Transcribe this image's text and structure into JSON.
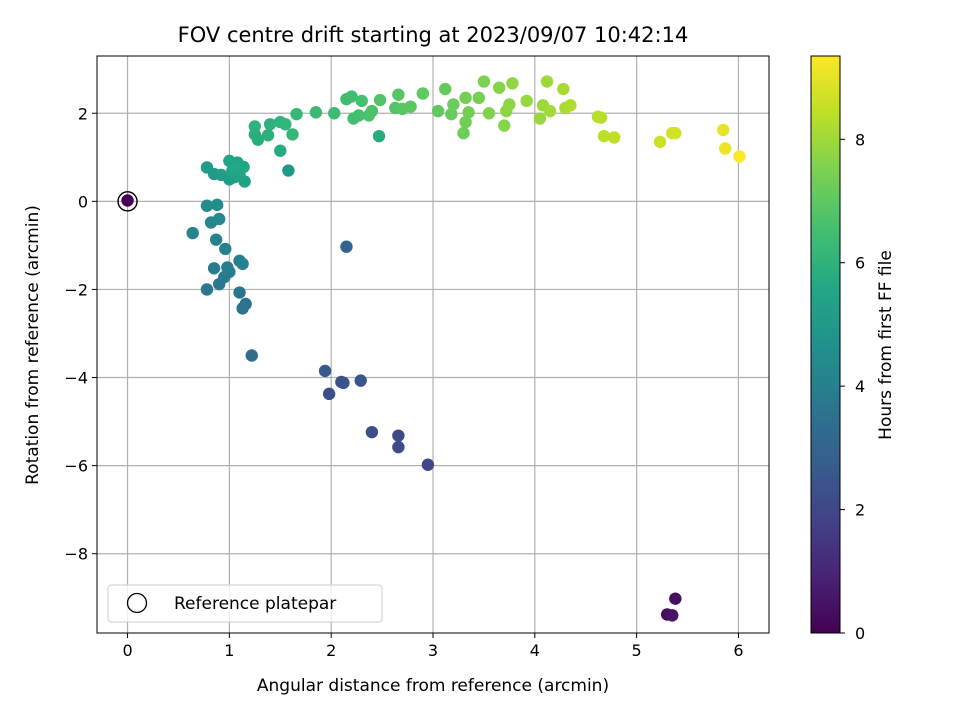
{
  "chart_data": {
    "type": "scatter",
    "title": "FOV centre drift starting at 2023/09/07 10:42:14",
    "xlabel": "Angular distance from reference (arcmin)",
    "ylabel": "Rotation from reference (arcmin)",
    "xlim": [
      -0.3,
      6.3
    ],
    "ylim": [
      -9.8,
      3.3
    ],
    "xticks": [
      0,
      1,
      2,
      3,
      4,
      5,
      6
    ],
    "yticks": [
      -8,
      -6,
      -4,
      -2,
      0,
      2
    ],
    "grid": true,
    "colormap": "viridis",
    "colorbar": {
      "label": "Hours from first FF file",
      "range": [
        0,
        9.35
      ],
      "ticks": [
        0,
        2,
        4,
        6,
        8
      ]
    },
    "legend": {
      "location": "lower-left",
      "entries": [
        "Reference platepar"
      ]
    },
    "reference_point": {
      "x": 0,
      "y": 0
    },
    "points": [
      {
        "x": 0.0,
        "y": 0.02,
        "c": 0.0
      },
      {
        "x": 5.3,
        "y": -9.38,
        "c": 0.3
      },
      {
        "x": 5.38,
        "y": -9.02,
        "c": 0.4
      },
      {
        "x": 5.35,
        "y": -9.4,
        "c": 0.5
      },
      {
        "x": 2.95,
        "y": -5.98,
        "c": 2.0
      },
      {
        "x": 2.66,
        "y": -5.58,
        "c": 2.1
      },
      {
        "x": 2.66,
        "y": -5.32,
        "c": 2.15
      },
      {
        "x": 2.4,
        "y": -5.24,
        "c": 2.2
      },
      {
        "x": 1.98,
        "y": -4.37,
        "c": 2.3
      },
      {
        "x": 2.1,
        "y": -4.1,
        "c": 2.4
      },
      {
        "x": 2.12,
        "y": -4.12,
        "c": 2.45
      },
      {
        "x": 2.29,
        "y": -4.07,
        "c": 2.5
      },
      {
        "x": 1.94,
        "y": -3.85,
        "c": 2.6
      },
      {
        "x": 2.15,
        "y": -1.03,
        "c": 3.0
      },
      {
        "x": 1.22,
        "y": -3.5,
        "c": 3.3
      },
      {
        "x": 1.13,
        "y": -2.43,
        "c": 3.5
      },
      {
        "x": 1.16,
        "y": -2.33,
        "c": 3.55
      },
      {
        "x": 1.1,
        "y": -2.07,
        "c": 3.6
      },
      {
        "x": 0.78,
        "y": -2.0,
        "c": 3.7
      },
      {
        "x": 0.9,
        "y": -1.88,
        "c": 3.75
      },
      {
        "x": 0.95,
        "y": -1.72,
        "c": 3.8
      },
      {
        "x": 1.0,
        "y": -1.6,
        "c": 3.85
      },
      {
        "x": 0.85,
        "y": -1.52,
        "c": 3.9
      },
      {
        "x": 0.98,
        "y": -1.5,
        "c": 3.95
      },
      {
        "x": 1.1,
        "y": -1.35,
        "c": 4.0
      },
      {
        "x": 1.13,
        "y": -1.42,
        "c": 4.05
      },
      {
        "x": 0.96,
        "y": -1.08,
        "c": 4.1
      },
      {
        "x": 0.87,
        "y": -0.87,
        "c": 4.15
      },
      {
        "x": 0.64,
        "y": -0.72,
        "c": 4.2
      },
      {
        "x": 0.82,
        "y": -0.48,
        "c": 4.3
      },
      {
        "x": 0.9,
        "y": -0.4,
        "c": 4.35
      },
      {
        "x": 0.78,
        "y": -0.1,
        "c": 4.4
      },
      {
        "x": 0.88,
        "y": -0.08,
        "c": 4.45
      },
      {
        "x": 1.58,
        "y": 0.7,
        "c": 5.0
      },
      {
        "x": 0.78,
        "y": 0.77,
        "c": 5.05
      },
      {
        "x": 0.85,
        "y": 0.62,
        "c": 5.1
      },
      {
        "x": 0.92,
        "y": 0.6,
        "c": 5.15
      },
      {
        "x": 1.0,
        "y": 0.5,
        "c": 5.2
      },
      {
        "x": 1.05,
        "y": 0.55,
        "c": 5.25
      },
      {
        "x": 1.15,
        "y": 0.45,
        "c": 5.3
      },
      {
        "x": 1.1,
        "y": 0.6,
        "c": 5.35
      },
      {
        "x": 1.03,
        "y": 0.7,
        "c": 5.4
      },
      {
        "x": 1.0,
        "y": 0.92,
        "c": 5.45
      },
      {
        "x": 1.08,
        "y": 0.88,
        "c": 5.5
      },
      {
        "x": 1.14,
        "y": 0.78,
        "c": 5.55
      },
      {
        "x": 1.05,
        "y": 0.75,
        "c": 5.6
      },
      {
        "x": 1.5,
        "y": 1.15,
        "c": 5.7
      },
      {
        "x": 2.47,
        "y": 1.48,
        "c": 5.75
      },
      {
        "x": 1.28,
        "y": 1.4,
        "c": 5.8
      },
      {
        "x": 1.25,
        "y": 1.52,
        "c": 5.85
      },
      {
        "x": 1.38,
        "y": 1.5,
        "c": 5.9
      },
      {
        "x": 1.4,
        "y": 1.75,
        "c": 5.95
      },
      {
        "x": 1.25,
        "y": 1.7,
        "c": 6.0
      },
      {
        "x": 1.5,
        "y": 1.8,
        "c": 6.05
      },
      {
        "x": 1.55,
        "y": 1.75,
        "c": 6.1
      },
      {
        "x": 1.62,
        "y": 1.52,
        "c": 6.15
      },
      {
        "x": 1.66,
        "y": 1.98,
        "c": 6.2
      },
      {
        "x": 1.85,
        "y": 2.02,
        "c": 6.3
      },
      {
        "x": 2.03,
        "y": 2.0,
        "c": 6.35
      },
      {
        "x": 2.15,
        "y": 2.32,
        "c": 6.4
      },
      {
        "x": 2.2,
        "y": 2.38,
        "c": 6.45
      },
      {
        "x": 2.22,
        "y": 1.88,
        "c": 6.5
      },
      {
        "x": 2.27,
        "y": 1.95,
        "c": 6.55
      },
      {
        "x": 2.3,
        "y": 2.28,
        "c": 6.6
      },
      {
        "x": 2.37,
        "y": 1.95,
        "c": 6.65
      },
      {
        "x": 2.4,
        "y": 2.05,
        "c": 6.7
      },
      {
        "x": 2.48,
        "y": 2.3,
        "c": 6.75
      },
      {
        "x": 2.63,
        "y": 2.12,
        "c": 6.8
      },
      {
        "x": 2.66,
        "y": 2.42,
        "c": 6.85
      },
      {
        "x": 2.7,
        "y": 2.1,
        "c": 6.9
      },
      {
        "x": 2.78,
        "y": 2.15,
        "c": 6.95
      },
      {
        "x": 2.9,
        "y": 2.45,
        "c": 7.0
      },
      {
        "x": 3.05,
        "y": 2.05,
        "c": 7.05
      },
      {
        "x": 3.12,
        "y": 2.55,
        "c": 7.1
      },
      {
        "x": 3.18,
        "y": 1.98,
        "c": 7.15
      },
      {
        "x": 3.2,
        "y": 2.2,
        "c": 7.2
      },
      {
        "x": 3.3,
        "y": 1.55,
        "c": 7.25
      },
      {
        "x": 3.32,
        "y": 1.8,
        "c": 7.3
      },
      {
        "x": 3.35,
        "y": 2.02,
        "c": 7.35
      },
      {
        "x": 3.32,
        "y": 2.35,
        "c": 7.4
      },
      {
        "x": 3.45,
        "y": 2.35,
        "c": 7.45
      },
      {
        "x": 3.5,
        "y": 2.72,
        "c": 7.5
      },
      {
        "x": 3.55,
        "y": 2.0,
        "c": 7.55
      },
      {
        "x": 3.65,
        "y": 2.58,
        "c": 7.6
      },
      {
        "x": 3.7,
        "y": 1.72,
        "c": 7.65
      },
      {
        "x": 3.72,
        "y": 2.05,
        "c": 7.7
      },
      {
        "x": 3.75,
        "y": 2.2,
        "c": 7.75
      },
      {
        "x": 3.78,
        "y": 2.68,
        "c": 7.8
      },
      {
        "x": 3.92,
        "y": 2.28,
        "c": 7.85
      },
      {
        "x": 4.05,
        "y": 1.88,
        "c": 7.9
      },
      {
        "x": 4.08,
        "y": 2.18,
        "c": 7.95
      },
      {
        "x": 4.12,
        "y": 2.72,
        "c": 8.0
      },
      {
        "x": 4.15,
        "y": 2.05,
        "c": 8.05
      },
      {
        "x": 4.28,
        "y": 2.55,
        "c": 8.1
      },
      {
        "x": 4.3,
        "y": 2.12,
        "c": 8.15
      },
      {
        "x": 4.35,
        "y": 2.18,
        "c": 8.2
      },
      {
        "x": 4.62,
        "y": 1.92,
        "c": 8.3
      },
      {
        "x": 4.65,
        "y": 1.9,
        "c": 8.35
      },
      {
        "x": 4.68,
        "y": 1.48,
        "c": 8.4
      },
      {
        "x": 4.78,
        "y": 1.45,
        "c": 8.45
      },
      {
        "x": 5.23,
        "y": 1.35,
        "c": 8.6
      },
      {
        "x": 5.35,
        "y": 1.55,
        "c": 8.7
      },
      {
        "x": 5.38,
        "y": 1.55,
        "c": 8.75
      },
      {
        "x": 5.85,
        "y": 1.62,
        "c": 9.0
      },
      {
        "x": 5.87,
        "y": 1.2,
        "c": 9.1
      },
      {
        "x": 6.01,
        "y": 1.02,
        "c": 9.3
      }
    ]
  }
}
